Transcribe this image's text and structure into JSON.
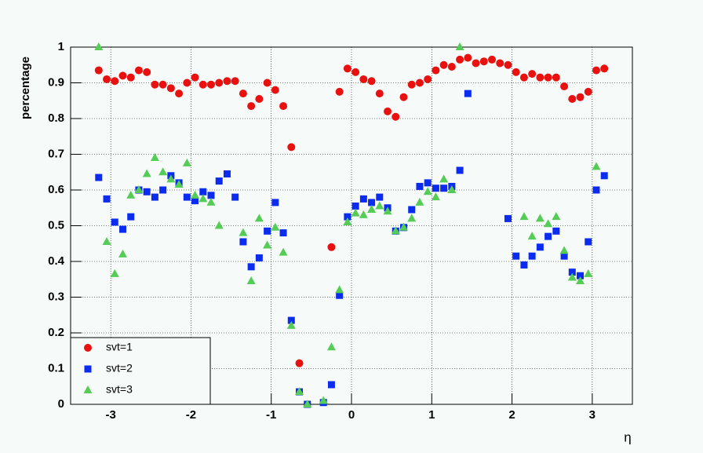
{
  "chart_data": {
    "type": "scatter",
    "x_label": "η",
    "y_label": "percentage",
    "x": [
      -3.15,
      -3.05,
      -2.95,
      -2.85,
      -2.75,
      -2.65,
      -2.55,
      -2.45,
      -2.35,
      -2.25,
      -2.15,
      -2.05,
      -1.95,
      -1.85,
      -1.75,
      -1.65,
      -1.55,
      -1.45,
      -1.35,
      -1.25,
      -1.15,
      -1.05,
      -0.95,
      -0.85,
      -0.75,
      -0.65,
      -0.55,
      -0.45,
      -0.35,
      -0.25,
      -0.15,
      -0.05,
      0.05,
      0.15,
      0.25,
      0.35,
      0.45,
      0.55,
      0.65,
      0.75,
      0.85,
      0.95,
      1.05,
      1.15,
      1.25,
      1.35,
      1.45,
      1.55,
      1.65,
      1.75,
      1.85,
      1.95,
      2.05,
      2.15,
      2.25,
      2.35,
      2.45,
      2.55,
      2.65,
      2.75,
      2.85,
      2.95,
      3.05,
      3.15
    ],
    "series": [
      {
        "name": "svt=1",
        "color": "#e8110f",
        "marker": "circle",
        "values": [
          0.935,
          0.91,
          0.905,
          0.92,
          0.915,
          0.935,
          0.93,
          0.895,
          0.895,
          0.885,
          0.87,
          0.9,
          0.915,
          0.895,
          0.895,
          0.9,
          0.905,
          0.905,
          0.87,
          0.835,
          0.855,
          0.9,
          0.88,
          0.835,
          0.72,
          0.115,
          null,
          null,
          null,
          0.44,
          0.875,
          0.94,
          0.93,
          0.91,
          0.905,
          0.87,
          0.82,
          0.805,
          0.86,
          0.895,
          0.9,
          0.91,
          0.935,
          0.95,
          0.945,
          0.965,
          0.97,
          0.955,
          0.96,
          0.965,
          0.955,
          0.95,
          0.93,
          0.915,
          0.925,
          0.915,
          0.915,
          0.915,
          0.89,
          0.855,
          0.86,
          0.875,
          0.935,
          0.94
        ]
      },
      {
        "name": "svt=2",
        "color": "#0b2bef",
        "marker": "square",
        "values": [
          0.635,
          0.575,
          0.51,
          0.49,
          0.525,
          0.6,
          0.595,
          0.58,
          0.6,
          0.64,
          0.62,
          0.58,
          0.57,
          0.595,
          0.585,
          0.625,
          0.645,
          0.58,
          0.455,
          0.385,
          0.41,
          0.485,
          0.565,
          0.48,
          0.235,
          0.035,
          0.0,
          null,
          0.005,
          0.055,
          0.305,
          0.525,
          0.555,
          0.575,
          0.565,
          0.58,
          0.55,
          0.485,
          0.495,
          0.545,
          0.61,
          0.62,
          0.605,
          0.605,
          0.61,
          0.655,
          0.87,
          null,
          null,
          null,
          null,
          0.52,
          0.415,
          0.39,
          0.415,
          0.44,
          0.47,
          0.485,
          0.415,
          0.37,
          0.36,
          0.455,
          0.6,
          0.64
        ]
      },
      {
        "name": "svt=3",
        "color": "#55cc55",
        "marker": "triangle",
        "values": [
          1.0,
          0.455,
          0.365,
          0.42,
          0.585,
          0.6,
          0.645,
          0.69,
          0.65,
          0.63,
          0.615,
          0.675,
          0.585,
          0.575,
          0.565,
          0.5,
          null,
          null,
          0.48,
          0.345,
          0.52,
          0.445,
          0.495,
          0.425,
          0.22,
          0.035,
          0.0,
          null,
          0.01,
          0.16,
          0.32,
          0.51,
          0.535,
          0.53,
          0.545,
          0.555,
          0.54,
          0.485,
          0.495,
          0.52,
          0.565,
          0.595,
          0.58,
          0.63,
          0.6,
          1.0,
          null,
          null,
          null,
          null,
          null,
          null,
          null,
          0.525,
          0.47,
          0.52,
          0.505,
          0.525,
          0.43,
          0.355,
          0.345,
          0.365,
          0.665,
          null
        ]
      }
    ],
    "xlim": [
      -3.5,
      3.5
    ],
    "ylim": [
      0,
      1
    ],
    "xticks": [
      -3,
      -2,
      -1,
      0,
      1,
      2,
      3
    ],
    "yticks": [
      0,
      0.1,
      0.2,
      0.3,
      0.4,
      0.5,
      0.6,
      0.7,
      0.8,
      0.9,
      1
    ],
    "grid": true,
    "legend": "lower left"
  }
}
